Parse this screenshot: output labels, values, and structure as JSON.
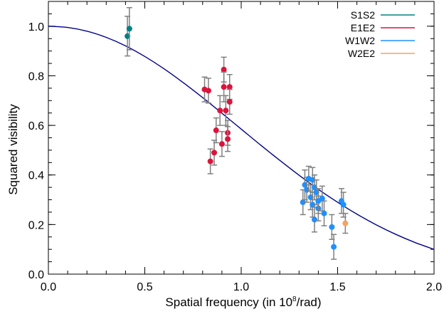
{
  "chart_data": {
    "type": "scatter",
    "xlabel_main": "Spatial frequency (in 10",
    "xlabel_sup": "8",
    "xlabel_tail": "/rad)",
    "ylabel": "Squared visibility",
    "xlim": [
      0.0,
      2.0
    ],
    "ylim": [
      0.0,
      1.1
    ],
    "x_ticks": [
      "0.0",
      "0.5",
      "1.0",
      "1.5",
      "2.0"
    ],
    "y_ticks": [
      "0.0",
      "0.2",
      "0.4",
      "0.6",
      "0.8",
      "1.0"
    ],
    "legend_position": "top-right",
    "model_curve": {
      "color": "#00008b",
      "x": [
        0.0,
        0.1,
        0.2,
        0.3,
        0.4,
        0.5,
        0.6,
        0.7,
        0.8,
        0.9,
        1.0,
        1.1,
        1.2,
        1.3,
        1.4,
        1.5,
        1.6,
        1.7,
        1.8,
        1.9,
        2.0
      ],
      "y": [
        1.0,
        0.995,
        0.98,
        0.955,
        0.921,
        0.878,
        0.828,
        0.772,
        0.712,
        0.649,
        0.585,
        0.521,
        0.459,
        0.399,
        0.342,
        0.29,
        0.242,
        0.199,
        0.161,
        0.128,
        0.1
      ]
    },
    "series": [
      {
        "name": "S1S2",
        "color": "#008080",
        "points": [
          {
            "x": 0.41,
            "y": 0.96,
            "err": 0.08
          },
          {
            "x": 0.42,
            "y": 0.99,
            "err": 0.085
          }
        ]
      },
      {
        "name": "E1E2",
        "color": "#dc143c",
        "points": [
          {
            "x": 0.81,
            "y": 0.745,
            "err": 0.05
          },
          {
            "x": 0.83,
            "y": 0.74,
            "err": 0.05
          },
          {
            "x": 0.84,
            "y": 0.455,
            "err": 0.05
          },
          {
            "x": 0.86,
            "y": 0.49,
            "err": 0.05
          },
          {
            "x": 0.87,
            "y": 0.58,
            "err": 0.05
          },
          {
            "x": 0.89,
            "y": 0.66,
            "err": 0.06
          },
          {
            "x": 0.9,
            "y": 0.525,
            "err": 0.05
          },
          {
            "x": 0.91,
            "y": 0.825,
            "err": 0.05
          },
          {
            "x": 0.91,
            "y": 0.755,
            "err": 0.06
          },
          {
            "x": 0.92,
            "y": 0.66,
            "err": 0.06
          },
          {
            "x": 0.93,
            "y": 0.57,
            "err": 0.05
          },
          {
            "x": 0.93,
            "y": 0.545,
            "err": 0.05
          },
          {
            "x": 0.94,
            "y": 0.755,
            "err": 0.05
          },
          {
            "x": 0.94,
            "y": 0.695,
            "err": 0.05
          }
        ]
      },
      {
        "name": "W1W2",
        "color": "#1e90ff",
        "points": [
          {
            "x": 1.32,
            "y": 0.29,
            "err": 0.05
          },
          {
            "x": 1.33,
            "y": 0.36,
            "err": 0.06
          },
          {
            "x": 1.34,
            "y": 0.34,
            "err": 0.05
          },
          {
            "x": 1.35,
            "y": 0.385,
            "err": 0.05
          },
          {
            "x": 1.36,
            "y": 0.31,
            "err": 0.05
          },
          {
            "x": 1.37,
            "y": 0.38,
            "err": 0.05
          },
          {
            "x": 1.37,
            "y": 0.28,
            "err": 0.05
          },
          {
            "x": 1.38,
            "y": 0.35,
            "err": 0.05
          },
          {
            "x": 1.38,
            "y": 0.22,
            "err": 0.05
          },
          {
            "x": 1.39,
            "y": 0.33,
            "err": 0.05
          },
          {
            "x": 1.4,
            "y": 0.265,
            "err": 0.05
          },
          {
            "x": 1.4,
            "y": 0.295,
            "err": 0.05
          },
          {
            "x": 1.42,
            "y": 0.305,
            "err": 0.05
          },
          {
            "x": 1.43,
            "y": 0.245,
            "err": 0.05
          },
          {
            "x": 1.47,
            "y": 0.19,
            "err": 0.05
          },
          {
            "x": 1.48,
            "y": 0.11,
            "err": 0.05
          },
          {
            "x": 1.52,
            "y": 0.295,
            "err": 0.05
          },
          {
            "x": 1.53,
            "y": 0.28,
            "err": 0.05
          }
        ]
      },
      {
        "name": "W2E2",
        "color": "#f4a460",
        "points": [
          {
            "x": 1.54,
            "y": 0.205,
            "err": 0.04
          }
        ]
      }
    ]
  }
}
